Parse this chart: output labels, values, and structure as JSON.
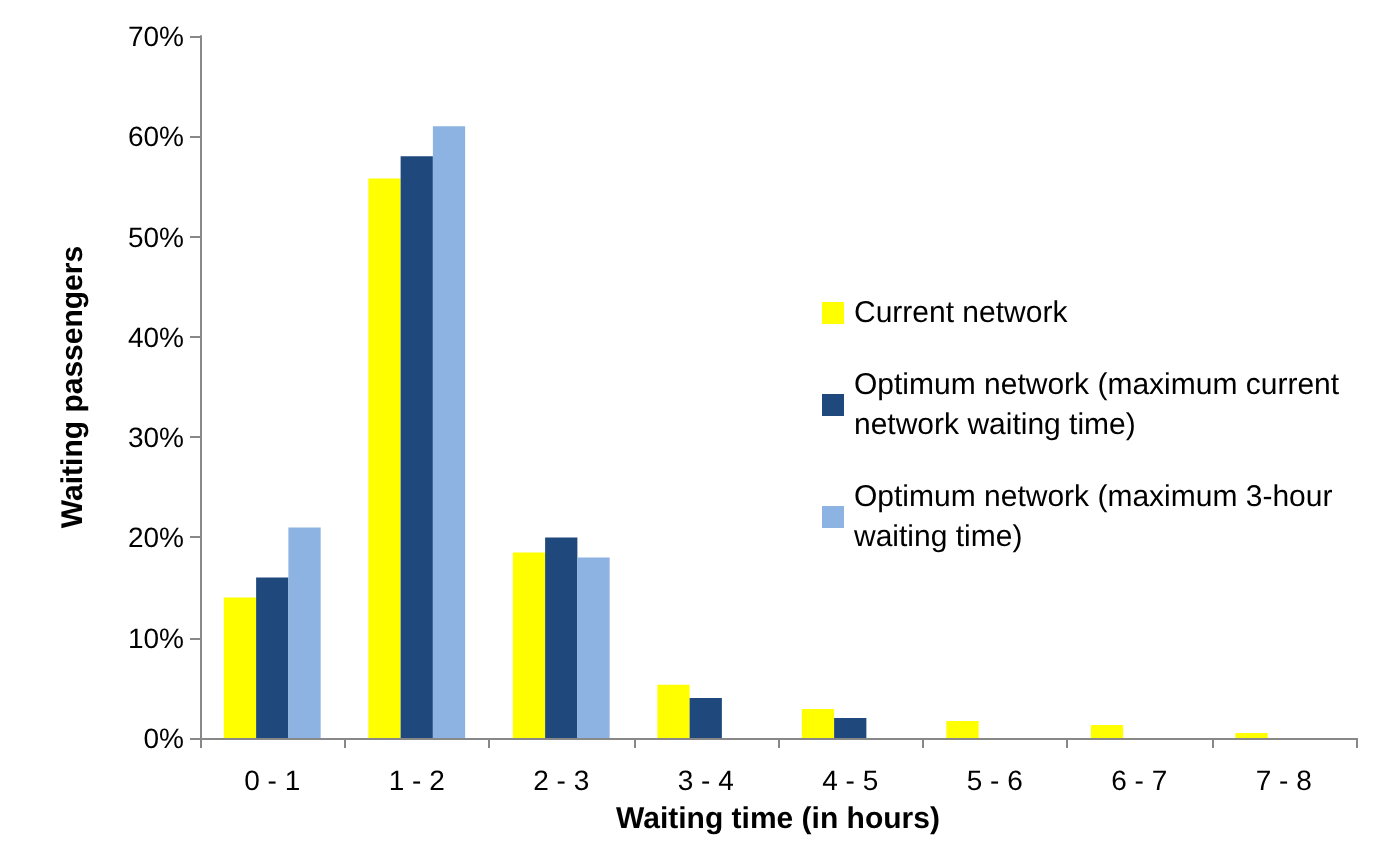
{
  "chart_data": {
    "type": "bar",
    "xlabel": "Waiting time (in hours)",
    "ylabel": "Waiting passengers",
    "categories": [
      "0 - 1",
      "1 - 2",
      "2 - 3",
      "3 - 4",
      "4 - 5",
      "5 - 6",
      "6 - 7",
      "7 - 8"
    ],
    "series": [
      {
        "name": "Current network",
        "color": "#ffff00",
        "values": [
          14,
          55.8,
          18.5,
          5.3,
          2.9,
          1.7,
          1.3,
          0.5
        ]
      },
      {
        "name": "Optimum network (maximum current network waiting time)",
        "color": "#1f497d",
        "values": [
          16,
          58,
          20,
          4,
          2,
          0,
          0,
          0
        ]
      },
      {
        "name": "Optimum network (maximum 3-hour waiting time)",
        "color": "#8db3e2",
        "values": [
          21,
          61,
          18,
          0,
          0,
          0,
          0,
          0
        ]
      }
    ],
    "ylim": [
      0,
      70
    ],
    "yticks": [
      {
        "value": 0,
        "label": "0%"
      },
      {
        "value": 10,
        "label": "10%"
      },
      {
        "value": 20,
        "label": "20%"
      },
      {
        "value": 30,
        "label": "30%"
      },
      {
        "value": 40,
        "label": "40%"
      },
      {
        "value": 50,
        "label": "50%"
      },
      {
        "value": 60,
        "label": "60%"
      },
      {
        "value": 70,
        "label": "70%"
      }
    ],
    "grid": false,
    "legend": "right"
  }
}
